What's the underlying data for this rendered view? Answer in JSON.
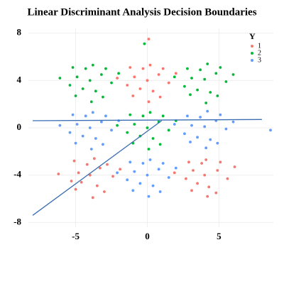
{
  "chart_data": {
    "type": "scatter",
    "title": "Linear Discriminant Analysis Decision Boundaries",
    "legend_title": "Y",
    "legend": "top-right",
    "grid": true,
    "xlim": [
      -8.3,
      8.8
    ],
    "ylim": [
      -8.4,
      8.4
    ],
    "xticks": [
      -5,
      0,
      5
    ],
    "yticks": [
      -8,
      -4,
      0,
      4,
      8
    ],
    "series": [
      {
        "name": "1",
        "color": "#f8766d",
        "x": [
          0,
          0.8,
          -0.9,
          0.4,
          -0.5,
          1.5,
          -1.4,
          0.2,
          -0.3,
          1.1,
          -1.2,
          0.9,
          -1.0,
          2.0,
          -2.1,
          0.1,
          -4,
          -3.3,
          -4.8,
          -3.5,
          -4.6,
          -2.4,
          -5.3,
          -3.7,
          -4.2,
          -2.8,
          -5.1,
          -3.0,
          -5.0,
          -1.9,
          -6.2,
          -3.8,
          4,
          4.9,
          3.2,
          4.3,
          3.5,
          5.6,
          2.7,
          4.1,
          3.8,
          5.1,
          2.9,
          4.8,
          3.1,
          6.1,
          1.9,
          4.2,
          0.1
        ],
        "y": [
          4,
          4.5,
          4.3,
          3.1,
          3.3,
          3.8,
          3.6,
          5.3,
          5.0,
          5.0,
          5.1,
          2.6,
          2.7,
          4.6,
          4.2,
          2.2,
          -4,
          -3.4,
          -3.8,
          -4.9,
          -4.6,
          -4.1,
          -4.5,
          -2.6,
          -3.1,
          -3.1,
          -2.8,
          -5.4,
          -5.2,
          -3.5,
          -3.9,
          -5.9,
          -4,
          -3.6,
          -3.6,
          -5.0,
          -4.7,
          -4.3,
          -4.3,
          -2.7,
          -3.0,
          -2.9,
          -2.9,
          -5.5,
          -5.3,
          -3.3,
          -3.8,
          -5.8,
          7.5
        ]
      },
      {
        "name": "2",
        "color": "#00ba38",
        "x": [
          -4,
          -3.2,
          -4.9,
          -3.6,
          -4.5,
          -2.5,
          -5.4,
          -3.8,
          -4.3,
          -2.9,
          -5.2,
          -3.1,
          -5.0,
          -2.0,
          -6.1,
          -3.9,
          4,
          4.8,
          3.1,
          4.4,
          3.5,
          5.5,
          2.6,
          4.2,
          3.7,
          5.1,
          2.8,
          4.9,
          3.0,
          6.0,
          1.9,
          4.1,
          0,
          0.8,
          -0.9,
          0.4,
          -0.5,
          1.5,
          -1.4,
          0.2,
          -0.3,
          1.1,
          -1.2,
          0.9,
          -1.0,
          2.0,
          -2.1,
          0.1,
          -0.2
        ],
        "y": [
          4,
          4.5,
          4.3,
          3.1,
          3.3,
          3.8,
          3.6,
          5.3,
          5.0,
          5.0,
          5.1,
          2.6,
          2.7,
          4.6,
          4.2,
          2.2,
          4.1,
          4.6,
          4.2,
          3.0,
          3.2,
          3.9,
          3.5,
          5.4,
          4.9,
          5.1,
          5.0,
          2.7,
          2.8,
          4.5,
          4.3,
          2.1,
          0,
          0.5,
          0.3,
          -0.9,
          -0.7,
          -0.2,
          -0.4,
          1.3,
          1.0,
          1.0,
          1.1,
          -1.4,
          -1.3,
          0.6,
          0.2,
          -1.8,
          7.1
        ]
      },
      {
        "name": "3",
        "color": "#619cff",
        "x": [
          -4,
          -3.2,
          -4.9,
          -3.6,
          -4.5,
          -2.5,
          -5.4,
          -3.8,
          -4.3,
          -2.9,
          -5.2,
          -3.1,
          -5.0,
          -2.0,
          -6.1,
          -3.9,
          4,
          4.8,
          3.1,
          4.4,
          3.5,
          5.5,
          2.6,
          4.2,
          3.7,
          5.1,
          2.8,
          4.9,
          3.0,
          6.0,
          1.9,
          4.1,
          0,
          0.8,
          -0.9,
          0.4,
          -0.5,
          1.5,
          -1.4,
          0.2,
          -0.3,
          1.1,
          -1.2,
          0.9,
          -1.0,
          2.0,
          -2.1,
          0.1,
          8.6
        ],
        "y": [
          0,
          0.5,
          0.3,
          -0.9,
          -0.7,
          -0.2,
          -0.4,
          1.3,
          1.0,
          1.0,
          1.1,
          -1.4,
          -1.3,
          0.6,
          0.2,
          -1.8,
          0.1,
          0.6,
          0.2,
          -1.0,
          -0.8,
          -0.1,
          -0.5,
          1.4,
          0.9,
          1.1,
          1.0,
          -1.3,
          -1.2,
          0.5,
          0.3,
          -1.7,
          -4,
          -3.5,
          -3.7,
          -4.9,
          -4.7,
          -4.2,
          -4.4,
          -2.7,
          -3.0,
          -3.0,
          -2.9,
          -5.4,
          -5.3,
          -3.4,
          -3.8,
          -5.8,
          -0.2
        ]
      }
    ],
    "lines": [
      {
        "x": [
          -8,
          8
        ],
        "y": [
          0.6,
          0.7
        ],
        "color": "#3a6db3"
      },
      {
        "x": [
          -8,
          1
        ],
        "y": [
          -7.4,
          0.6
        ],
        "color": "#3a6db3"
      }
    ]
  }
}
